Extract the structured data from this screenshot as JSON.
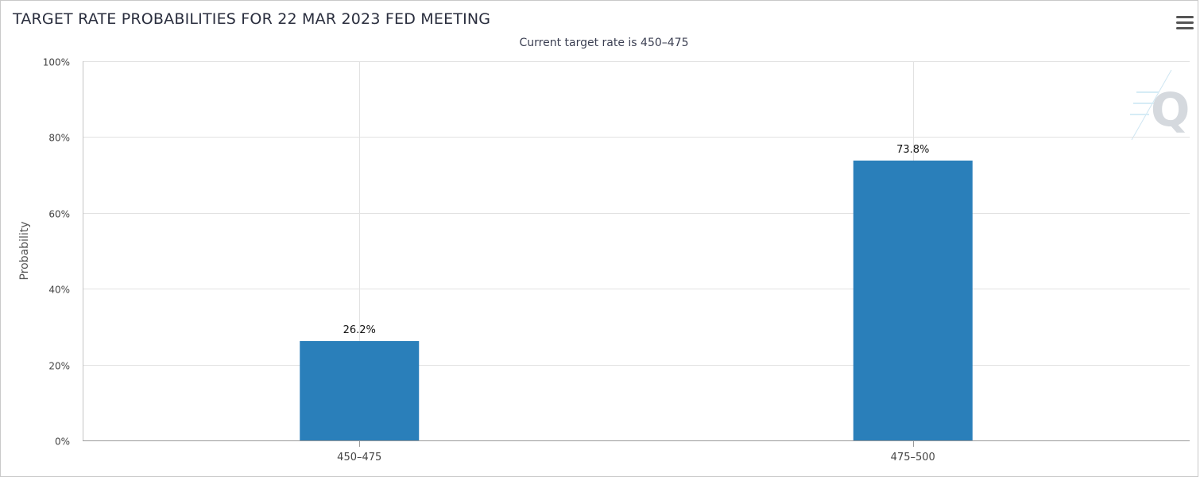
{
  "chart_data": {
    "type": "bar",
    "title": "TARGET RATE PROBABILITIES FOR 22 MAR 2023 FED MEETING",
    "subtitle": "Current target rate is 450–475",
    "xlabel": "",
    "ylabel": "Probability",
    "categories": [
      "450–475",
      "475–500"
    ],
    "values": [
      26.2,
      73.8
    ],
    "data_labels": [
      "26.2%",
      "73.8%"
    ],
    "ylim": [
      0,
      100
    ],
    "yticks": [
      0,
      20,
      40,
      60,
      80,
      100
    ],
    "ytick_labels": [
      "0%",
      "20%",
      "40%",
      "60%",
      "80%",
      "100%"
    ],
    "grid": true,
    "legend": "none",
    "bar_color": "#2a7fba",
    "grid_color": "#e2e2e2"
  },
  "menu": {
    "icon": "hamburger-menu-icon"
  },
  "watermark": {
    "letter": "Q"
  }
}
